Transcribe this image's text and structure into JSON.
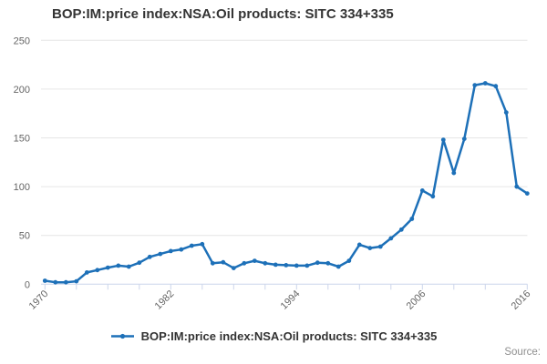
{
  "title": "BOP:IM:price index:NSA:Oil products: SITC 334+335",
  "legend": {
    "label": "BOP:IM:price index:NSA:Oil products: SITC 334+335"
  },
  "footer": {
    "source_label": "Source:"
  },
  "colors": {
    "line": "#1d70b8",
    "grid": "#e6e6e6",
    "axis": "#ccd6eb",
    "tick_label": "#666666",
    "title_text": "#333333",
    "source_text": "#8f8f8f"
  },
  "chart_data": {
    "type": "line",
    "title": "BOP:IM:price index:NSA:Oil products: SITC 334+335",
    "xlabel": "",
    "ylabel": "",
    "ylim": [
      0,
      250
    ],
    "yticks": [
      0,
      50,
      100,
      150,
      200,
      250
    ],
    "xticks": [
      1970,
      1973,
      1976,
      1979,
      1982,
      1985,
      1988,
      1991,
      1994,
      1997,
      2000,
      2003,
      2006,
      2009,
      2012,
      2016
    ],
    "xtick_labels": [
      1970,
      1982,
      1994,
      2006,
      2016
    ],
    "grid": "horizontal-only",
    "legend_position": "bottom",
    "marker": "circle",
    "series": [
      {
        "name": "BOP:IM:price index:NSA:Oil products: SITC 334+335",
        "color": "#1d70b8",
        "x": [
          1970,
          1971,
          1972,
          1973,
          1974,
          1975,
          1976,
          1977,
          1978,
          1979,
          1980,
          1981,
          1982,
          1983,
          1984,
          1985,
          1986,
          1987,
          1988,
          1989,
          1990,
          1991,
          1992,
          1993,
          1994,
          1995,
          1996,
          1997,
          1998,
          1999,
          2000,
          2001,
          2002,
          2003,
          2004,
          2005,
          2006,
          2007,
          2008,
          2009,
          2010,
          2011,
          2012,
          2013,
          2014,
          2015,
          2016
        ],
        "values": [
          3.5,
          2,
          2,
          3,
          12,
          14.5,
          17,
          19,
          18,
          22,
          28,
          31,
          34,
          35.5,
          39.5,
          41,
          21.5,
          22.5,
          16.5,
          21.5,
          24,
          21.5,
          20,
          19.5,
          19,
          19,
          22,
          21.5,
          18,
          24,
          40.5,
          37,
          38.5,
          47,
          56,
          67,
          96,
          90,
          148,
          114,
          149,
          204,
          206,
          203,
          176,
          100,
          93
        ]
      }
    ]
  }
}
